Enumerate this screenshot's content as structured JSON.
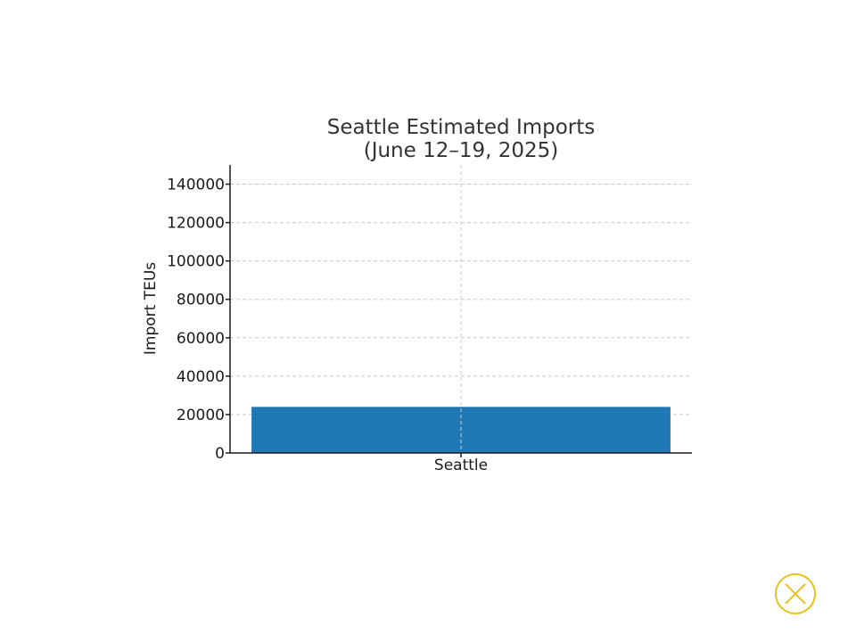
{
  "chart_data": {
    "type": "bar",
    "title_lines": [
      "Seattle Estimated Imports",
      "(June 12–19, 2025)"
    ],
    "categories": [
      "Seattle"
    ],
    "values": [
      24000
    ],
    "xlabel": "",
    "ylabel": "Import TEUs",
    "ylim": [
      0,
      150000
    ],
    "yticks": [
      0,
      20000,
      40000,
      60000,
      80000,
      100000,
      120000,
      140000
    ],
    "grid": true,
    "bar_color": "#1f77b4"
  },
  "overlay": {
    "close_icon": "close-circle-icon",
    "close_color": "#e8c21f"
  }
}
